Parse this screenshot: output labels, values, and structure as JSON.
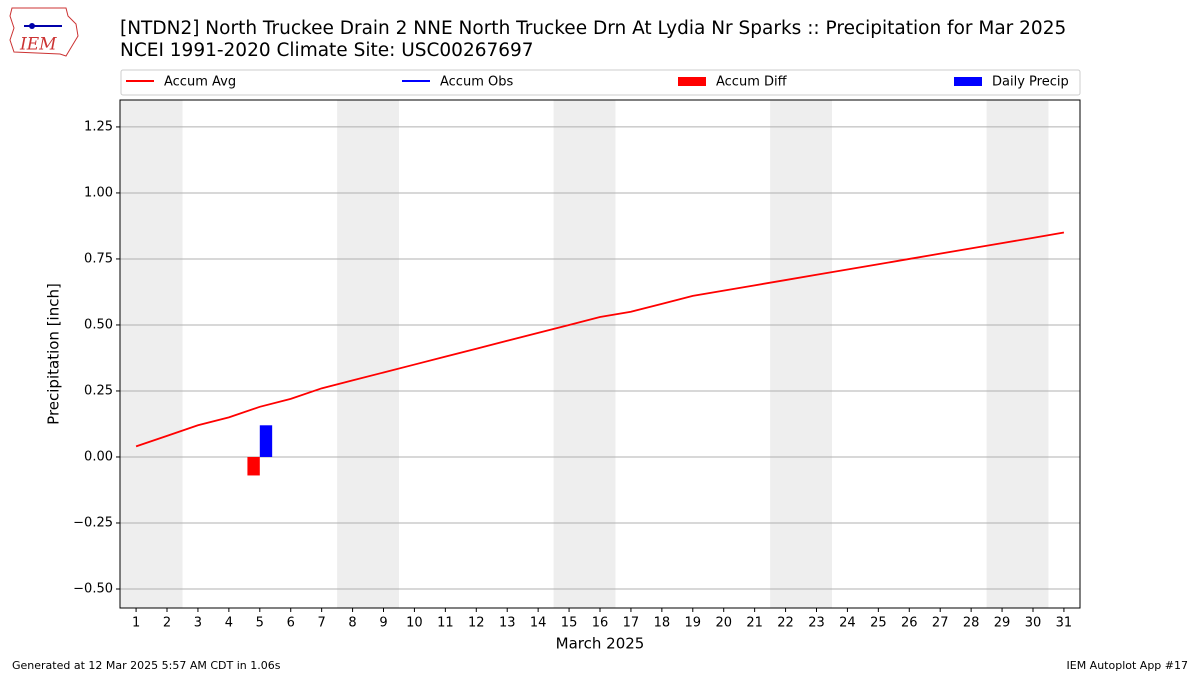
{
  "logo": "IEM",
  "footer": {
    "left": "Generated at 12 Mar 2025 5:57 AM CDT in 1.06s",
    "right": "IEM Autoplot App #17"
  },
  "chart_data": {
    "type": "line",
    "title": "[NTDN2] North Truckee Drain 2 NNE North Truckee Drn At Lydia Nr Sparks :: Precipitation for Mar 2025",
    "subtitle": "NCEI 1991-2020 Climate Site: USC00267697",
    "x_label": "March 2025",
    "y_label": "Precipitation [inch]",
    "x": [
      1,
      2,
      3,
      4,
      5,
      6,
      7,
      8,
      9,
      10,
      11,
      12,
      13,
      14,
      15,
      16,
      17,
      18,
      19,
      20,
      21,
      22,
      23,
      24,
      25,
      26,
      27,
      28,
      29,
      30,
      31
    ],
    "xlim": [
      0.48,
      31.52
    ],
    "xticks": [
      1,
      2,
      3,
      4,
      5,
      6,
      7,
      8,
      9,
      10,
      11,
      12,
      13,
      14,
      15,
      16,
      17,
      18,
      19,
      20,
      21,
      22,
      23,
      24,
      25,
      26,
      27,
      28,
      29,
      30,
      31
    ],
    "ylim": [
      -0.572,
      1.352
    ],
    "yticks": [
      {
        "value": -0.5,
        "label": "−0.50"
      },
      {
        "value": -0.25,
        "label": "−0.25"
      },
      {
        "value": 0,
        "label": "0.00"
      },
      {
        "value": 0.25,
        "label": "0.25"
      },
      {
        "value": 0.5,
        "label": "0.50"
      },
      {
        "value": 0.75,
        "label": "0.75"
      },
      {
        "value": 1,
        "label": "1.00"
      },
      {
        "value": 1.25,
        "label": "1.25"
      }
    ],
    "grid": true,
    "shade_days": [
      1,
      2,
      8,
      9,
      15,
      16,
      22,
      23,
      29,
      30
    ],
    "shade_color": "#eeeeee",
    "series": [
      {
        "name": "Accum Avg",
        "type": "line",
        "color": "#ff0000",
        "values": [
          0.04,
          0.08,
          0.12,
          0.15,
          0.19,
          0.22,
          0.26,
          0.29,
          0.32,
          0.35,
          0.38,
          0.41,
          0.44,
          0.47,
          0.5,
          0.53,
          0.55,
          0.58,
          0.61,
          0.63,
          0.65,
          0.67,
          0.69,
          0.71,
          0.73,
          0.75,
          0.77,
          0.79,
          0.81,
          0.83,
          0.85
        ]
      },
      {
        "name": "Accum Obs",
        "type": "line",
        "color": "#0000ff",
        "values": [
          null,
          null,
          null,
          null,
          null,
          null,
          null,
          null,
          null,
          null,
          null,
          null,
          null,
          null,
          null,
          null,
          null,
          null,
          null,
          null,
          null,
          null,
          null,
          null,
          null,
          null,
          null,
          null,
          null,
          null,
          null
        ]
      },
      {
        "name": "Accum Diff",
        "type": "bar",
        "color": "#ff0000",
        "values": [
          null,
          null,
          null,
          null,
          -0.07,
          null,
          null,
          null,
          null,
          null,
          null,
          null,
          null,
          null,
          null,
          null,
          null,
          null,
          null,
          null,
          null,
          null,
          null,
          null,
          null,
          null,
          null,
          null,
          null,
          null,
          null
        ]
      },
      {
        "name": "Daily Precip",
        "type": "bar",
        "color": "#0000ff",
        "values": [
          null,
          null,
          null,
          null,
          0.12,
          null,
          null,
          null,
          null,
          null,
          null,
          null,
          null,
          null,
          null,
          null,
          null,
          null,
          null,
          null,
          null,
          null,
          null,
          null,
          null,
          null,
          null,
          null,
          null,
          null,
          null
        ]
      }
    ]
  }
}
